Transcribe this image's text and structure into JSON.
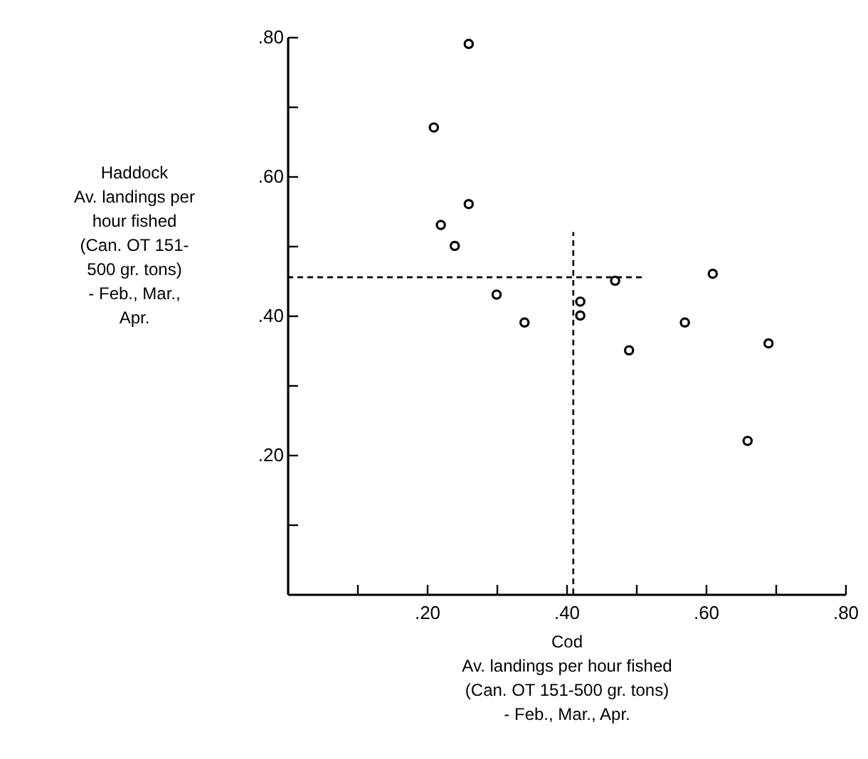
{
  "chart_data": {
    "type": "scatter",
    "xlabel": "Cod\nAv. landings per hour fished\n(Can. OT 151-500 gr. tons)\n- Feb., Mar., Apr.",
    "ylabel": "Haddock\nAv. landings per\nhour fished\n(Can. OT 151-\n500 gr. tons)\n- Feb., Mar.,\nApr.",
    "xlim": [
      0,
      0.8
    ],
    "ylim": [
      0,
      0.8
    ],
    "xticks": [
      {
        "value": 0.1,
        "label": null
      },
      {
        "value": 0.2,
        "label": ".20"
      },
      {
        "value": 0.3,
        "label": null
      },
      {
        "value": 0.4,
        "label": ".40"
      },
      {
        "value": 0.5,
        "label": null
      },
      {
        "value": 0.6,
        "label": ".60"
      },
      {
        "value": 0.7,
        "label": null
      },
      {
        "value": 0.8,
        "label": ".80"
      }
    ],
    "yticks": [
      {
        "value": 0.1,
        "label": null
      },
      {
        "value": 0.2,
        "label": ".20"
      },
      {
        "value": 0.3,
        "label": null
      },
      {
        "value": 0.4,
        "label": ".40"
      },
      {
        "value": 0.5,
        "label": null
      },
      {
        "value": 0.6,
        "label": ".60"
      },
      {
        "value": 0.7,
        "label": null
      },
      {
        "value": 0.8,
        "label": ".80"
      }
    ],
    "grid": false,
    "series": [
      {
        "color": "#000000",
        "marker": "circle",
        "x": [
          0.26,
          0.21,
          0.26,
          0.22,
          0.24,
          0.3,
          0.34,
          0.42,
          0.42,
          0.47,
          0.49,
          0.57,
          0.61,
          0.69,
          0.66
        ],
        "values": [
          0.79,
          0.67,
          0.56,
          0.53,
          0.5,
          0.43,
          0.39,
          0.42,
          0.4,
          0.45,
          0.35,
          0.39,
          0.46,
          0.36,
          0.22
        ]
      },
      {
        "type": "line",
        "color": "#000000",
        "line_style": "dashed",
        "marker": "none",
        "x": [
          0,
          0.51
        ],
        "values": [
          0.455,
          0.455
        ]
      },
      {
        "type": "line",
        "color": "#000000",
        "line_style": "dashed",
        "marker": "none",
        "x": [
          0.41,
          0.41
        ],
        "values": [
          0,
          0.52
        ]
      }
    ]
  }
}
